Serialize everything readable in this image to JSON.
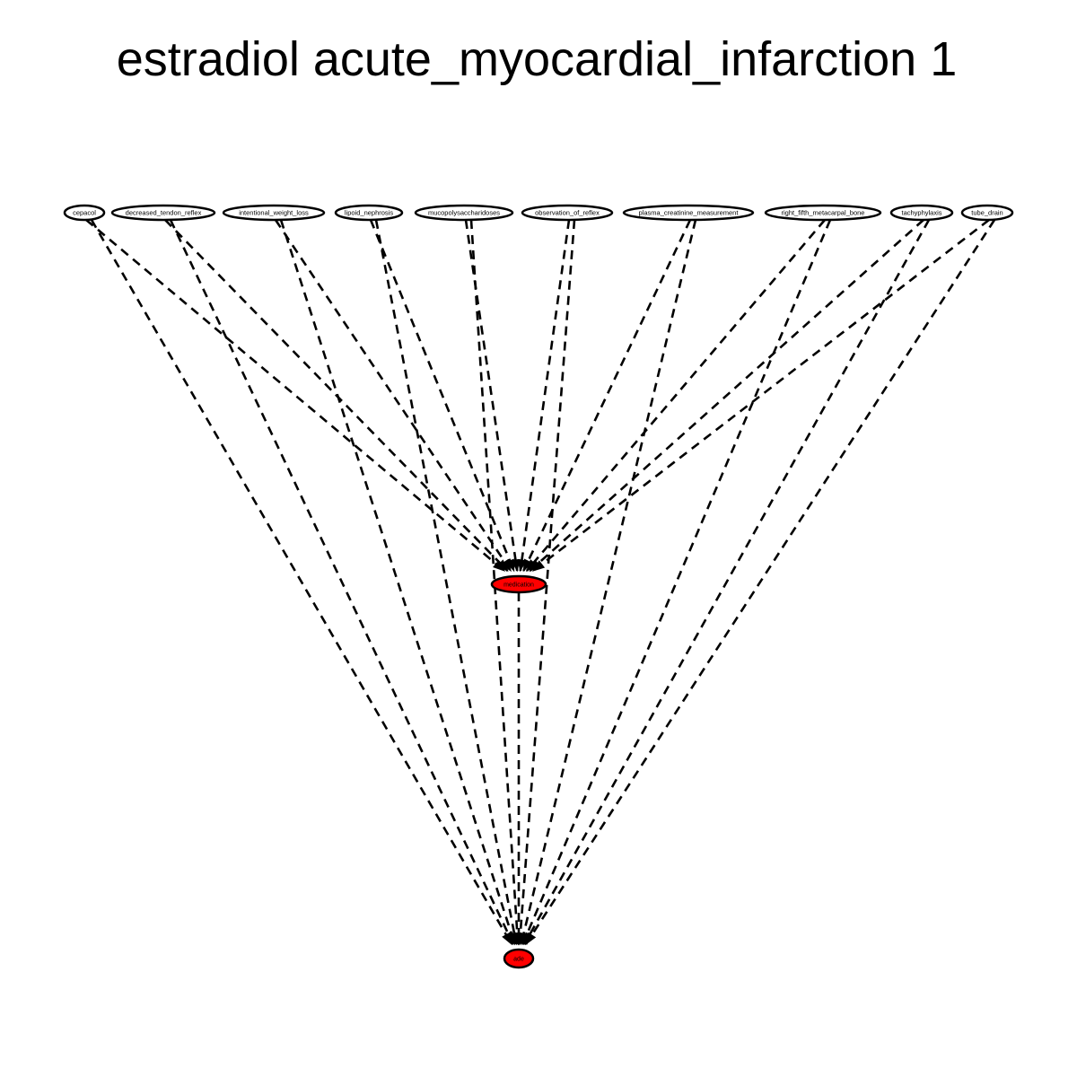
{
  "title": "estradiol acute_myocardial_infarction 1",
  "colors": {
    "highlight_node": "#ff0000",
    "default_node": "#ffffff",
    "edge": "#000000"
  },
  "nodes": {
    "top": [
      {
        "id": "cepacol",
        "label": "cepacol"
      },
      {
        "id": "decreased_tendon_reflex",
        "label": "decreased_tendon_reflex"
      },
      {
        "id": "intentional_weight_loss",
        "label": "intentional_weight_loss"
      },
      {
        "id": "lipoid_nephrosis",
        "label": "lipoid_nephrosis"
      },
      {
        "id": "mucopolysaccharidoses",
        "label": "mucopolysaccharidoses"
      },
      {
        "id": "observation_of_reflex",
        "label": "observation_of_reflex"
      },
      {
        "id": "plasma_creatinine_measurement",
        "label": "plasma_creatinine_measurement"
      },
      {
        "id": "right_fifth_metacarpal_bone",
        "label": "right_fifth_metacarpal_bone"
      },
      {
        "id": "tachyphylaxis",
        "label": "tachyphylaxis"
      },
      {
        "id": "tube_drain",
        "label": "tube_drain"
      }
    ],
    "middle": {
      "id": "medication",
      "label": "medication",
      "highlighted": true
    },
    "bottom": {
      "id": "ade",
      "label": "ade",
      "highlighted": true
    }
  },
  "edges": {
    "style": "dashed",
    "directed": true,
    "description": "every top node connects to medication and to ade; medication connects to ade"
  }
}
